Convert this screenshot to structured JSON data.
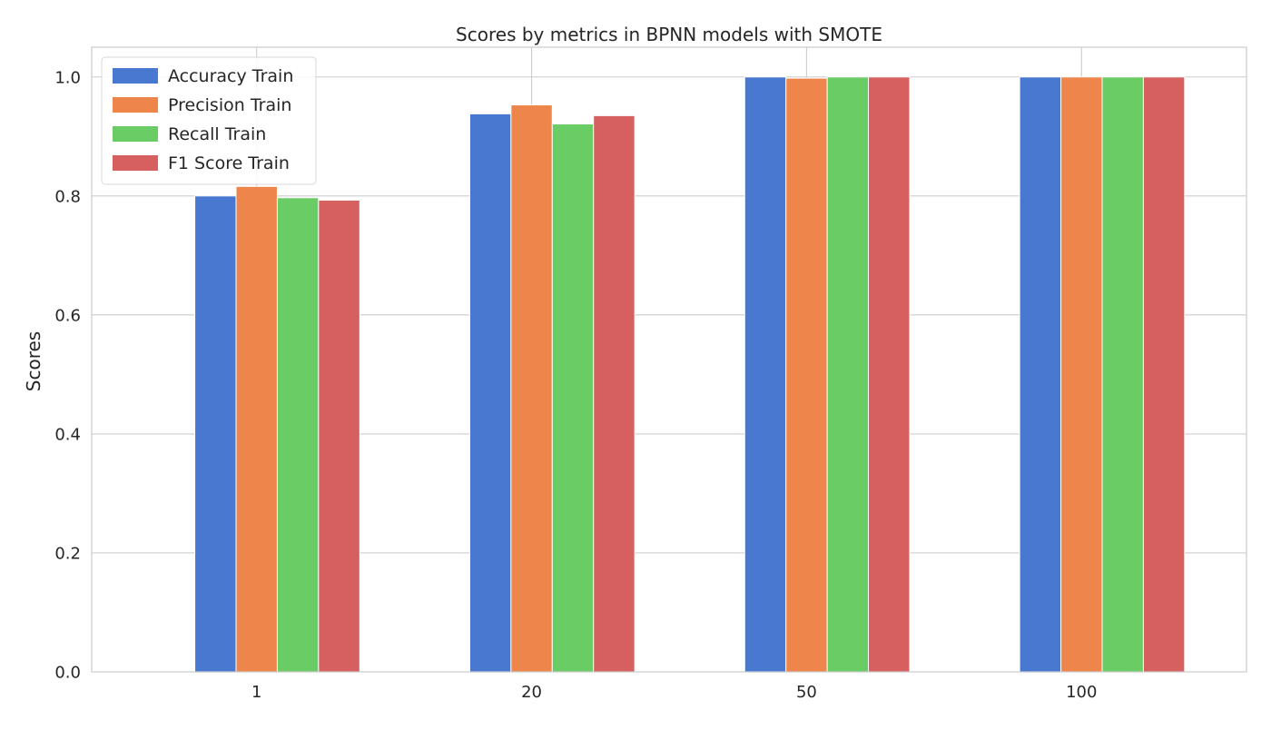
{
  "chart_data": {
    "type": "bar",
    "title": "Scores by metrics in BPNN models with SMOTE",
    "xlabel": "",
    "ylabel": "Scores",
    "categories": [
      "1",
      "20",
      "50",
      "100"
    ],
    "ylim": [
      0,
      1.05
    ],
    "yticks": [
      0.0,
      0.2,
      0.4,
      0.6,
      0.8,
      1.0
    ],
    "ytick_labels": [
      "0.0",
      "0.2",
      "0.4",
      "0.6",
      "0.8",
      "1.0"
    ],
    "grid": true,
    "legend_position": "top-left",
    "series": [
      {
        "name": "Accuracy Train",
        "color": "#4878d0",
        "values": [
          0.8,
          0.938,
          1.0,
          1.0
        ]
      },
      {
        "name": "Precision Train",
        "color": "#ee854a",
        "values": [
          0.816,
          0.953,
          0.998,
          1.0
        ]
      },
      {
        "name": "Recall Train",
        "color": "#6acc64",
        "values": [
          0.797,
          0.921,
          1.0,
          1.0
        ]
      },
      {
        "name": "F1 Score Train",
        "color": "#d65f5f",
        "values": [
          0.793,
          0.935,
          1.0,
          1.0
        ]
      }
    ]
  }
}
